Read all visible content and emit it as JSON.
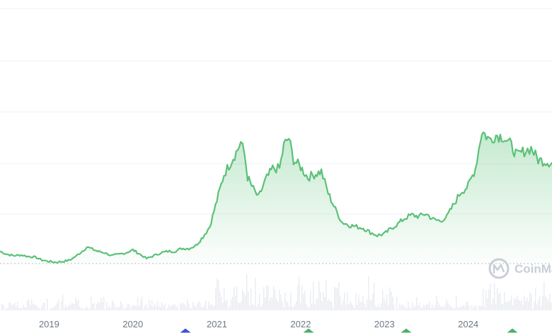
{
  "watermark": {
    "text": "CoinMarketCap"
  },
  "colors": {
    "line": "#5bc178",
    "fill_top": "#5bc178",
    "grid": "#eef0f3",
    "volume": "#e9ecf1",
    "axis_text": "#6f7886",
    "marker_blue": "#3b4fd6",
    "marker_green": "#4caf6a"
  },
  "icons": [
    "coinmarketcap-logo-icon",
    "event-marker-icon"
  ],
  "chart_data": {
    "type": "area",
    "title": "",
    "xlabel": "",
    "ylabel": "",
    "grid": true,
    "legend": "none",
    "x_tick_labels": [
      "2019",
      "2020",
      "2021",
      "2022",
      "2023",
      "2024"
    ],
    "x_range": [
      "2018-06-01",
      "2024-12-31"
    ],
    "y_relative_range": [
      0,
      100
    ],
    "series": [
      {
        "values": [
          [
            "2018-06-01",
            5
          ],
          [
            "2018-07-01",
            3
          ],
          [
            "2018-08-01",
            2
          ],
          [
            "2018-09-01",
            2.5
          ],
          [
            "2018-10-01",
            1.5
          ],
          [
            "2018-11-01",
            1
          ],
          [
            "2018-12-01",
            -1
          ],
          [
            "2019-01-01",
            -2
          ],
          [
            "2019-02-01",
            -2.5
          ],
          [
            "2019-03-01",
            -2
          ],
          [
            "2019-04-01",
            -1
          ],
          [
            "2019-05-01",
            2
          ],
          [
            "2019-06-01",
            6
          ],
          [
            "2019-06-15",
            8
          ],
          [
            "2019-07-01",
            7
          ],
          [
            "2019-08-01",
            5
          ],
          [
            "2019-09-01",
            4
          ],
          [
            "2019-10-01",
            2
          ],
          [
            "2019-11-01",
            3
          ],
          [
            "2019-12-01",
            4
          ],
          [
            "2020-01-01",
            6
          ],
          [
            "2020-02-01",
            3
          ],
          [
            "2020-03-01",
            0
          ],
          [
            "2020-04-01",
            2
          ],
          [
            "2020-05-01",
            4
          ],
          [
            "2020-06-01",
            5
          ],
          [
            "2020-07-01",
            5
          ],
          [
            "2020-08-01",
            7
          ],
          [
            "2020-09-01",
            7
          ],
          [
            "2020-10-01",
            9
          ],
          [
            "2020-11-01",
            15
          ],
          [
            "2020-12-01",
            22
          ],
          [
            "2021-01-01",
            40
          ],
          [
            "2021-02-01",
            58
          ],
          [
            "2021-03-01",
            66
          ],
          [
            "2021-04-01",
            75
          ],
          [
            "2021-04-15",
            80
          ],
          [
            "2021-05-01",
            72
          ],
          [
            "2021-05-15",
            56
          ],
          [
            "2021-06-01",
            50
          ],
          [
            "2021-07-01",
            42
          ],
          [
            "2021-08-01",
            54
          ],
          [
            "2021-09-01",
            62
          ],
          [
            "2021-10-01",
            62
          ],
          [
            "2021-10-20",
            78
          ],
          [
            "2021-11-10",
            83
          ],
          [
            "2021-12-01",
            68
          ],
          [
            "2022-01-01",
            63
          ],
          [
            "2022-02-01",
            56
          ],
          [
            "2022-03-01",
            58
          ],
          [
            "2022-04-01",
            60
          ],
          [
            "2022-05-01",
            45
          ],
          [
            "2022-06-01",
            34
          ],
          [
            "2022-07-01",
            25
          ],
          [
            "2022-08-01",
            23
          ],
          [
            "2022-09-01",
            22
          ],
          [
            "2022-10-01",
            21
          ],
          [
            "2022-11-01",
            18
          ],
          [
            "2022-12-01",
            16
          ],
          [
            "2023-01-01",
            17
          ],
          [
            "2023-02-01",
            21
          ],
          [
            "2023-03-01",
            24
          ],
          [
            "2023-04-01",
            28
          ],
          [
            "2023-05-01",
            30
          ],
          [
            "2023-06-01",
            29
          ],
          [
            "2023-07-01",
            31
          ],
          [
            "2023-08-01",
            27
          ],
          [
            "2023-09-01",
            26
          ],
          [
            "2023-10-01",
            29
          ],
          [
            "2023-11-01",
            38
          ],
          [
            "2023-12-01",
            46
          ],
          [
            "2024-01-01",
            50
          ],
          [
            "2024-02-01",
            62
          ],
          [
            "2024-03-01",
            88
          ],
          [
            "2024-04-01",
            82
          ],
          [
            "2024-05-01",
            85
          ],
          [
            "2024-06-01",
            84
          ],
          [
            "2024-07-01",
            79
          ],
          [
            "2024-08-01",
            71
          ],
          [
            "2024-09-01",
            74
          ],
          [
            "2024-10-01",
            76
          ],
          [
            "2024-11-01",
            68
          ],
          [
            "2024-12-31",
            66
          ]
        ]
      }
    ]
  }
}
